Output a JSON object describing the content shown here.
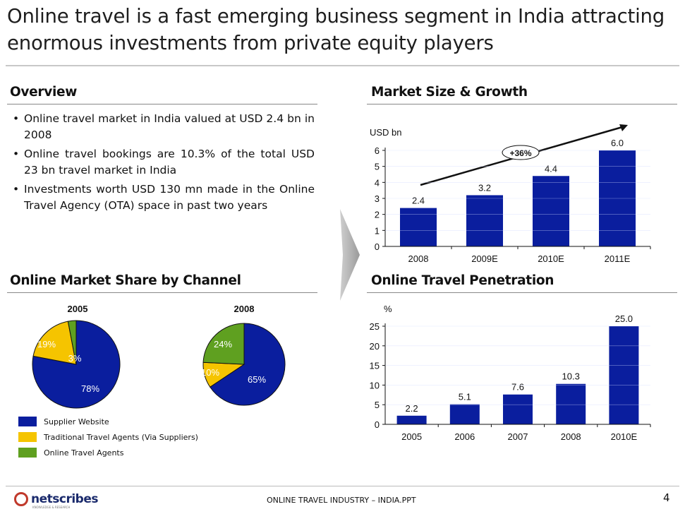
{
  "title": "Online travel is a fast emerging business segment in India attracting enormous investments from private equity players",
  "sections": {
    "overview": "Overview",
    "market": "Market Size & Growth",
    "share": "Online Market Share by Channel",
    "penetration": "Online Travel Penetration"
  },
  "bullets": [
    "Online travel market in India valued at USD 2.4 bn in 2008",
    "Online travel bookings are 10.3% of the total USD 23 bn travel market in India",
    "Investments worth USD 130 mn made in the Online Travel Agency (OTA) space in past two years"
  ],
  "colors": {
    "bar": "#0a1e9e",
    "supplier": "#0a1e9e",
    "agents": "#f5c400",
    "ota": "#5fa020"
  },
  "chart_data": [
    {
      "type": "bar",
      "title": "Market Size & Growth",
      "ylabel": "USD bn",
      "categories": [
        "2008",
        "2009E",
        "2010E",
        "2011E"
      ],
      "values": [
        2.4,
        3.2,
        4.4,
        6.0
      ],
      "labels": [
        "2.4",
        "3.2",
        "4.4",
        "6.0"
      ],
      "ylim": [
        0,
        6
      ],
      "yticks": [
        0,
        1,
        2,
        3,
        4,
        5,
        6
      ],
      "annotation": "+36%"
    },
    {
      "type": "bar",
      "title": "Online Travel Penetration",
      "ylabel": "%",
      "categories": [
        "2005",
        "2006",
        "2007",
        "2008",
        "2010E"
      ],
      "values": [
        2.2,
        5.1,
        7.6,
        10.3,
        25.0
      ],
      "labels": [
        "2.2",
        "5.1",
        "7.6",
        "10.3",
        "25.0"
      ],
      "ylim": [
        0,
        25
      ],
      "yticks": [
        0,
        5,
        10,
        15,
        20,
        25
      ]
    },
    {
      "type": "pie",
      "title": "2005",
      "slices": [
        {
          "name": "Supplier Website",
          "value": 78,
          "label": "78%"
        },
        {
          "name": "Traditional Travel Agents (Via Suppliers)",
          "value": 19,
          "label": "19%"
        },
        {
          "name": "Online Travel Agents",
          "value": 3,
          "label": "3%"
        }
      ]
    },
    {
      "type": "pie",
      "title": "2008",
      "slices": [
        {
          "name": "Supplier Website",
          "value": 65,
          "label": "65%"
        },
        {
          "name": "Traditional Travel Agents (Via Suppliers)",
          "value": 10,
          "label": "10%"
        },
        {
          "name": "Online Travel Agents",
          "value": 24,
          "label": "24%"
        }
      ]
    }
  ],
  "legend": [
    {
      "label": "Supplier Website",
      "color": "#0a1e9e"
    },
    {
      "label": "Traditional Travel Agents (Via Suppliers)",
      "color": "#f5c400"
    },
    {
      "label": "Online Travel Agents",
      "color": "#5fa020"
    }
  ],
  "footer": {
    "logo": "netscribes",
    "logo_tagline": "KNOWLEDGE & RESEARCH",
    "file": "ONLINE TRAVEL INDUSTRY – INDIA.PPT",
    "page": "4"
  }
}
